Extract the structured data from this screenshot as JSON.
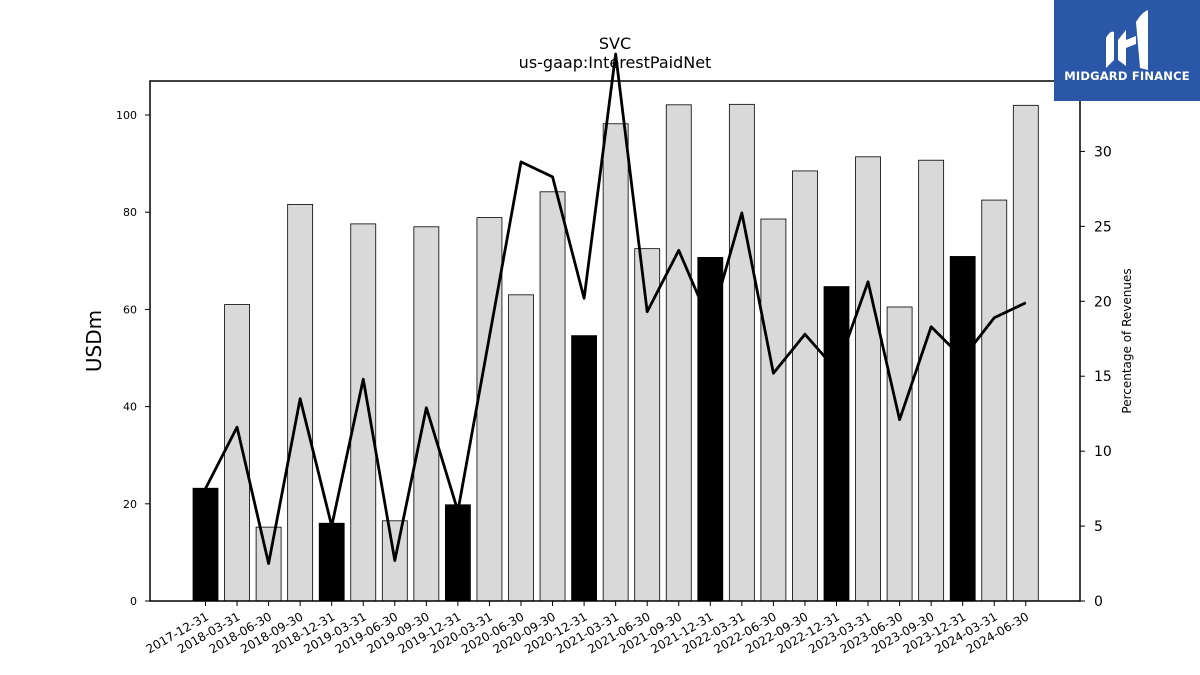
{
  "chart_data": {
    "type": "bar+line",
    "title": "SVC",
    "subtitle": "us-gaap:InterestPaidNet",
    "ylabel": "USDm",
    "y2label": "Percentage of Revenues",
    "ylim": [
      0,
      107
    ],
    "y2lim": [
      0,
      34.7
    ],
    "yticks": [
      0,
      20,
      40,
      60,
      80,
      100
    ],
    "y2ticks": [
      0,
      5,
      10,
      15,
      20,
      25,
      30
    ],
    "categories": [
      "2017-12-31",
      "2018-03-31",
      "2018-06-30",
      "2018-09-30",
      "2018-12-31",
      "2019-03-31",
      "2019-06-30",
      "2019-09-30",
      "2019-12-31",
      "2020-03-31",
      "2020-06-30",
      "2020-09-30",
      "2020-12-31",
      "2021-03-31",
      "2021-06-30",
      "2021-09-30",
      "2021-12-31",
      "2022-03-31",
      "2022-06-30",
      "2022-09-30",
      "2022-12-31",
      "2023-03-31",
      "2023-06-30",
      "2023-09-30",
      "2023-12-31",
      "2024-03-31",
      "2024-06-30"
    ],
    "series": [
      {
        "type": "bar",
        "values": [
          23.2,
          61.0,
          15.2,
          81.6,
          16.0,
          77.6,
          16.5,
          77.0,
          19.8,
          78.9,
          63.0,
          84.2,
          54.6,
          98.2,
          72.5,
          102.1,
          70.7,
          102.2,
          78.6,
          88.5,
          64.7,
          91.4,
          60.5,
          90.7,
          70.9,
          82.5,
          102.0
        ],
        "annual": [
          true,
          false,
          false,
          false,
          true,
          false,
          false,
          false,
          true,
          false,
          false,
          false,
          true,
          false,
          false,
          false,
          true,
          false,
          false,
          false,
          true,
          false,
          false,
          false,
          true,
          false,
          false
        ]
      },
      {
        "type": "line",
        "axis": "right",
        "values": [
          7.5,
          11.6,
          2.5,
          13.5,
          5.0,
          14.8,
          2.7,
          12.9,
          6.0,
          null,
          29.3,
          28.3,
          20.2,
          36.5,
          19.3,
          23.4,
          18.5,
          25.9,
          15.2,
          17.8,
          15.4,
          21.3,
          12.1,
          18.3,
          16.2,
          18.9,
          19.9
        ]
      }
    ],
    "colors": {
      "bar_annual": "#000000",
      "bar_quarter": "#d9d9d9",
      "line": "#000000"
    },
    "grid": false,
    "legend": "none"
  },
  "logo": {
    "text": "MIDGARD FINANCE",
    "color": "#2a57a8"
  }
}
